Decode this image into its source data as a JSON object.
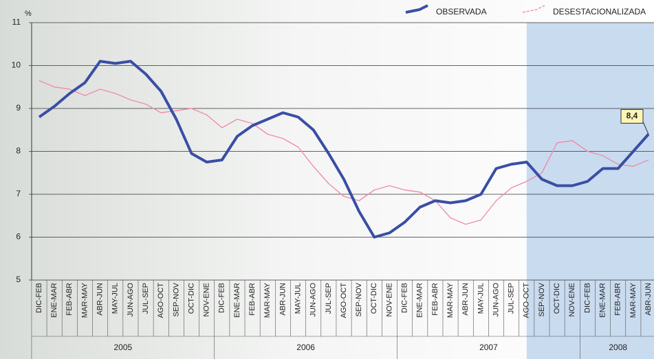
{
  "chart_data": {
    "type": "line",
    "y_axis_label": "%",
    "categories": [
      "DIC-FEB",
      "ENE-MAR",
      "FEB-ABR",
      "MAR-MAY",
      "ABR-JUN",
      "MAY-JUL",
      "JUN-AGO",
      "JUL-SEP",
      "AGO-OCT",
      "SEP-NOV",
      "OCT-DIC",
      "NOV-ENE",
      "DIC-FEB",
      "ENE-MAR",
      "FEB-ABR",
      "MAR-MAY",
      "ABR-JUN",
      "MAY-JUL",
      "JUN-AGO",
      "JUL-SEP",
      "AGO-OCT",
      "SEP-NOV",
      "OCT-DIC",
      "NOV-ENE",
      "DIC-FEB",
      "ENE-MAR",
      "FEB-ABR",
      "MAR-MAY",
      "ABR-JUN",
      "MAY-JUL",
      "JUN-AGO",
      "JUL-SEP",
      "AGO-OCT",
      "SEP-NOV",
      "OCT-DIC",
      "NOV-ENE",
      "DIC-FEB",
      "ENE-MAR",
      "FEB-ABR",
      "MAR-MAY",
      "ABR-JUN"
    ],
    "year_groups": [
      {
        "label": "2005",
        "count": 12
      },
      {
        "label": "2006",
        "count": 12
      },
      {
        "label": "2007",
        "count": 12
      },
      {
        "label": "2008",
        "count": 5
      }
    ],
    "series": [
      {
        "name": "OBSERVADA",
        "color": "#3a4ea5",
        "values": [
          8.8,
          9.05,
          9.35,
          9.6,
          10.1,
          10.05,
          10.1,
          9.8,
          9.4,
          8.75,
          7.95,
          7.75,
          7.8,
          8.35,
          8.6,
          8.75,
          8.9,
          8.8,
          8.5,
          7.95,
          7.35,
          6.6,
          6.0,
          6.1,
          6.35,
          6.7,
          6.85,
          6.8,
          6.85,
          7.0,
          7.6,
          7.7,
          7.75,
          7.35,
          7.2,
          7.2,
          7.3,
          7.6,
          7.6,
          8.0,
          8.4
        ]
      },
      {
        "name": "DESESTACIONALIZADA",
        "color": "#f08cae",
        "values": [
          9.65,
          9.5,
          9.45,
          9.3,
          9.45,
          9.35,
          9.2,
          9.1,
          8.9,
          8.95,
          9.0,
          8.85,
          8.55,
          8.75,
          8.65,
          8.4,
          8.3,
          8.1,
          7.65,
          7.25,
          6.95,
          6.85,
          7.1,
          7.2,
          7.1,
          7.05,
          6.85,
          6.45,
          6.3,
          6.4,
          6.85,
          7.15,
          7.3,
          7.5,
          8.2,
          8.25,
          8.0,
          7.9,
          7.7,
          7.65,
          7.8
        ]
      }
    ],
    "annotation": "8,4",
    "highlight": {
      "from_index": 32,
      "color": "#c9dbef"
    },
    "ylim": [
      5,
      11
    ],
    "yticks": [
      5,
      6,
      7,
      8,
      9,
      10,
      11
    ],
    "grid": true
  }
}
